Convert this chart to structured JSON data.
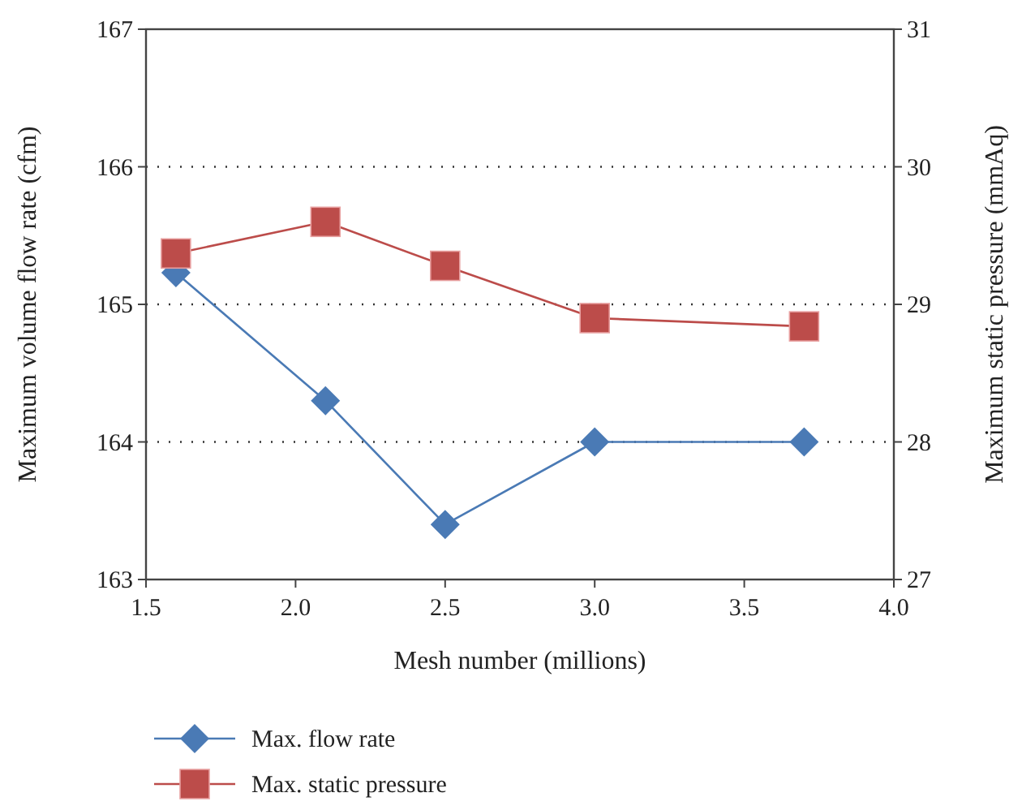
{
  "chart_data": {
    "type": "line",
    "xlabel": "Mesh number (millions)",
    "ylabel": "Maximum volume flow rate (cfm)",
    "y2label": "Maximum static pressure (mmAq)",
    "x": [
      1.6,
      2.1,
      2.5,
      3.0,
      3.7
    ],
    "series": [
      {
        "name": "Max. flow rate",
        "color": "#4a7ab5",
        "marker": "diamond",
        "values": [
          165.23,
          164.3,
          163.4,
          164,
          164
        ]
      },
      {
        "name": "Max. static pressure",
        "color": "#bc4c4a",
        "marker": "square",
        "axis": "y2",
        "values": [
          29.37,
          29.6,
          29.28,
          28.9,
          28.84
        ]
      }
    ],
    "xlim": [
      1.5,
      4.0
    ],
    "xticks": [
      {
        "value": 1.5,
        "label": "1.5"
      },
      {
        "value": 2,
        "label": "2.0"
      },
      {
        "value": 2.5,
        "label": "2.5"
      },
      {
        "value": 3,
        "label": "3.0"
      },
      {
        "value": 3.5,
        "label": "3.5"
      },
      {
        "value": 4,
        "label": "4.0"
      }
    ],
    "ylim": [
      163,
      167
    ],
    "yticks": [
      163,
      164,
      165,
      166,
      167
    ],
    "y2lim": [
      27,
      31
    ],
    "y2ticks": [
      27,
      28,
      29,
      30,
      31
    ],
    "grid": "y",
    "legend": "bottom",
    "line_style": "solid"
  }
}
